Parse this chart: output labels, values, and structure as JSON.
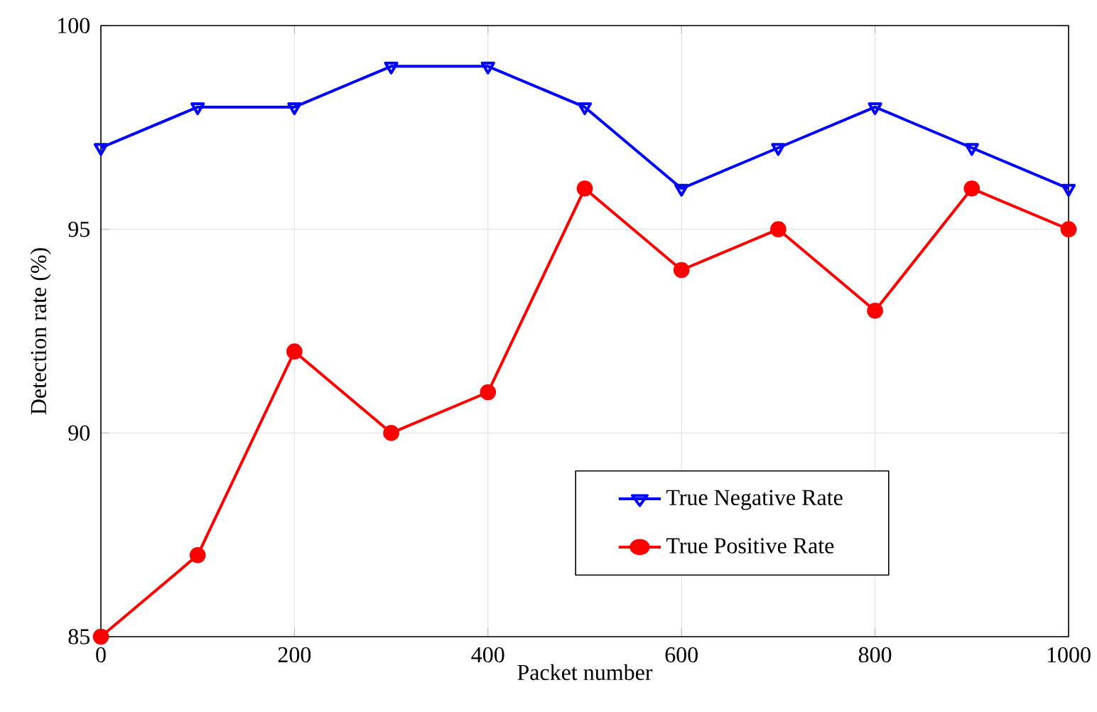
{
  "chart_data": {
    "type": "line",
    "xlabel": "Packet number",
    "ylabel": "Detection rate (%)",
    "x": [
      0,
      100,
      200,
      300,
      400,
      500,
      600,
      700,
      800,
      900,
      1000
    ],
    "series": [
      {
        "name": "True Negative Rate",
        "color": "#0000ff",
        "marker": "triangle",
        "values": [
          97,
          98,
          98,
          99,
          99,
          98,
          96,
          97,
          98,
          97,
          96
        ]
      },
      {
        "name": "True Positive Rate",
        "color": "#ff0000",
        "marker": "circle",
        "values": [
          85,
          87,
          92,
          90,
          91,
          96,
          94,
          95,
          93,
          96,
          95
        ]
      }
    ],
    "xlim": [
      0,
      1000
    ],
    "ylim": [
      85,
      100
    ],
    "xticks": [
      0,
      200,
      400,
      600,
      800,
      1000
    ],
    "yticks": [
      85,
      90,
      95,
      100
    ],
    "grid": true,
    "legend": "bottom right",
    "line_style": "solid"
  }
}
